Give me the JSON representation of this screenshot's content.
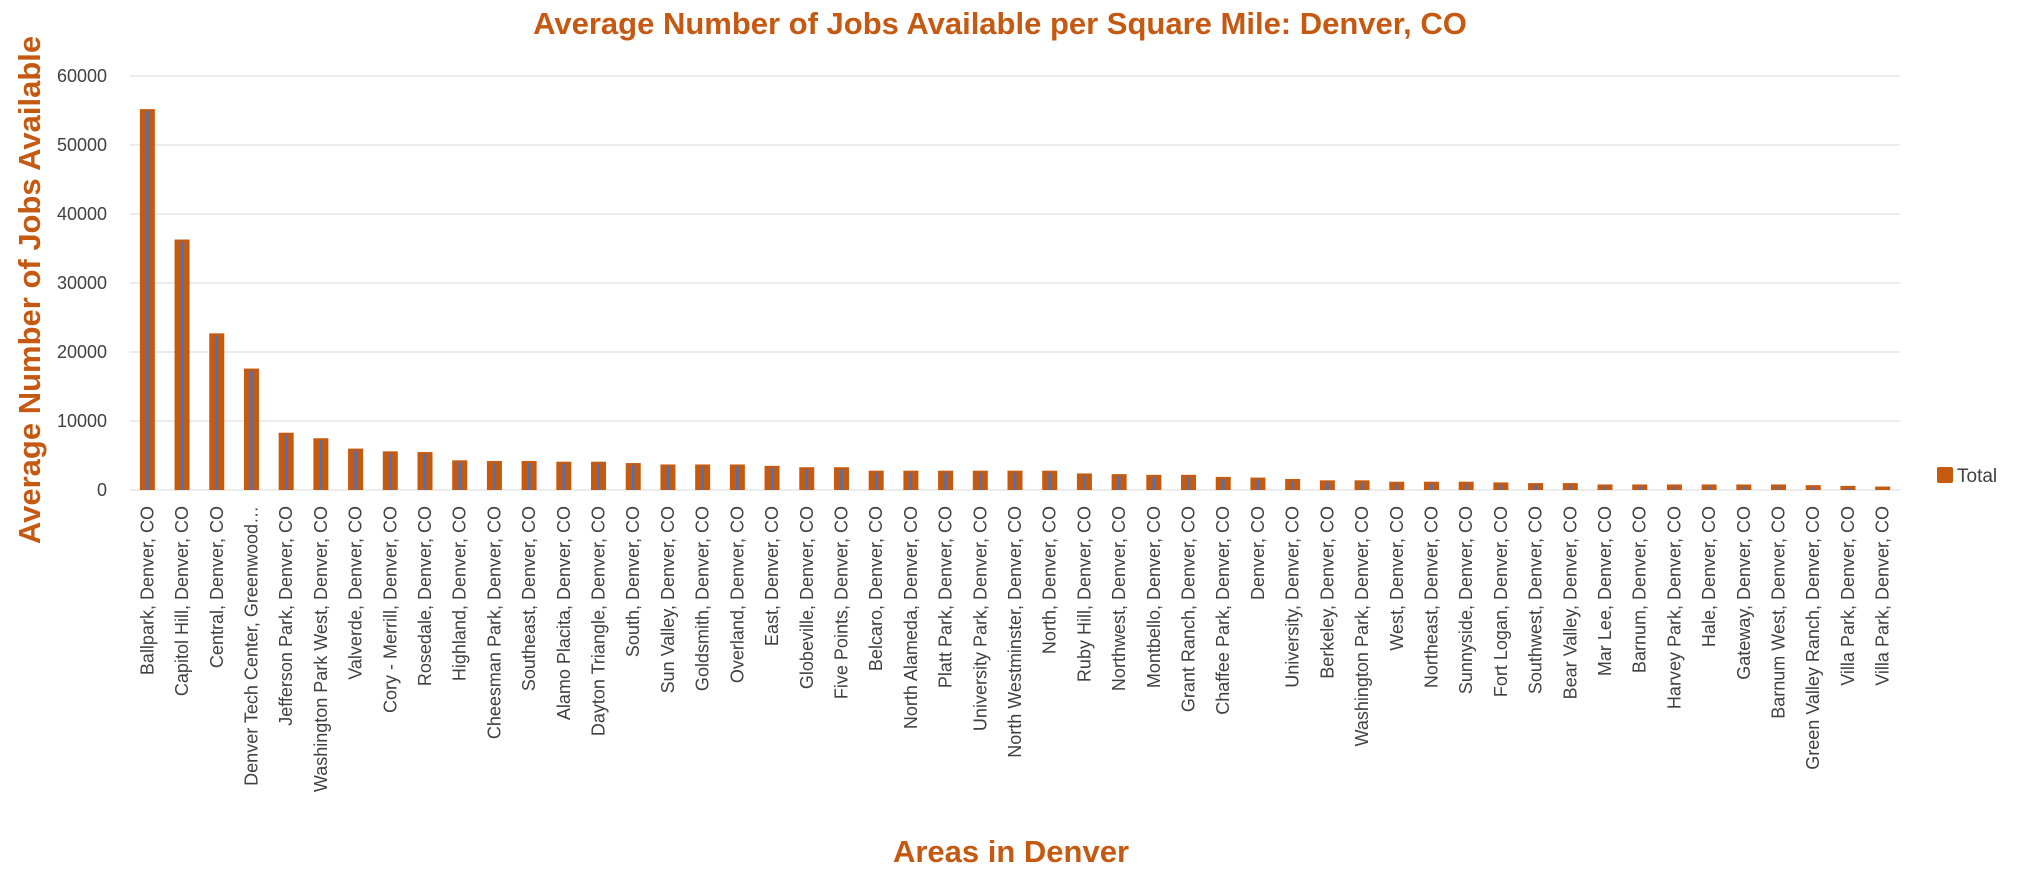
{
  "colors": {
    "accent": "#C65911",
    "bar": "#C55A11",
    "bar_stripe": "#4472C4",
    "grid": "#D9D9D9",
    "text": "#404040"
  },
  "chart_data": {
    "type": "bar",
    "title": "Average Number of Jobs Available per Square Mile: Denver, CO",
    "xlabel": "Areas in Denver",
    "ylabel": "Average Number of Jobs Available",
    "ylim": [
      0,
      60000
    ],
    "yticks": [
      0,
      10000,
      20000,
      30000,
      40000,
      50000,
      60000
    ],
    "grid": true,
    "legend": {
      "position": "right",
      "entries": [
        "Total"
      ]
    },
    "series": [
      {
        "name": "Total",
        "values": [
          55200,
          36300,
          22700,
          17600,
          8300,
          7500,
          6000,
          5600,
          5500,
          4300,
          4200,
          4200,
          4100,
          4100,
          3900,
          3700,
          3700,
          3700,
          3500,
          3300,
          3300,
          2800,
          2800,
          2800,
          2800,
          2800,
          2800,
          2400,
          2300,
          2200,
          2200,
          1900,
          1800,
          1600,
          1400,
          1400,
          1200,
          1200,
          1200,
          1100,
          1000,
          1000,
          800,
          800,
          800,
          800,
          800,
          800,
          700,
          600,
          500
        ]
      }
    ],
    "categories": [
      "Ballpark, Denver, CO",
      "Capitol Hill, Denver, CO",
      "Central, Denver, CO",
      "Denver Tech Center, Greenwood…",
      "Jefferson Park, Denver, CO",
      "Washington Park West, Denver, CO",
      "Valverde, Denver, CO",
      "Cory - Merrill, Denver, CO",
      "Rosedale, Denver, CO",
      "Highland, Denver, CO",
      "Cheesman Park, Denver, CO",
      "Southeast, Denver, CO",
      "Alamo Placita, Denver, CO",
      "Dayton Triangle, Denver, CO",
      "South, Denver, CO",
      "Sun Valley, Denver, CO",
      "Goldsmith, Denver, CO",
      "Overland, Denver, CO",
      "East, Denver, CO",
      "Globeville, Denver, CO",
      "Five Points, Denver, CO",
      "Belcaro, Denver, CO",
      "North Alameda, Denver, CO",
      "Platt Park, Denver, CO",
      "University Park, Denver, CO",
      "North Westminster, Denver, CO",
      "North, Denver, CO",
      "Ruby Hill, Denver, CO",
      "Northwest, Denver, CO",
      "Montbello, Denver, CO",
      "Grant Ranch, Denver, CO",
      "Chaffee Park, Denver, CO",
      "Denver, CO",
      "University, Denver, CO",
      "Berkeley, Denver, CO",
      "Washington Park, Denver, CO",
      "West, Denver, CO",
      "Northeast, Denver, CO",
      "Sunnyside, Denver, CO",
      "Fort Logan, Denver, CO",
      "Southwest, Denver, CO",
      "Bear Valley, Denver, CO",
      "Mar Lee, Denver, CO",
      "Barnum, Denver, CO",
      "Harvey Park, Denver, CO",
      "Hale, Denver, CO",
      "Gateway, Denver, CO",
      "Barnum West, Denver, CO",
      "Green Valley Ranch, Denver, CO",
      "Villa Park, Denver, CO",
      "Villa Park, Denver, CO"
    ]
  }
}
